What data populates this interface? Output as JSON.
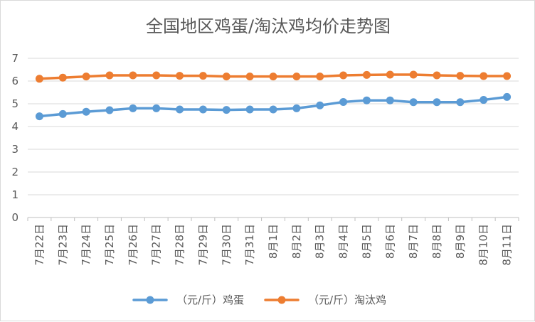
{
  "chart_data": {
    "type": "line",
    "title": "全国地区鸡蛋/淘汰鸡均价走势图",
    "categories": [
      "7月22日",
      "7月23日",
      "7月24日",
      "7月25日",
      "7月26日",
      "7月27日",
      "7月28日",
      "7月29日",
      "7月30日",
      "7月31日",
      "8月1日",
      "8月2日",
      "8月3日",
      "8月4日",
      "8月5日",
      "8月6日",
      "8月7日",
      "8月8日",
      "8月9日",
      "8月10日",
      "8月11日"
    ],
    "y_ticks": [
      "0",
      "1",
      "2",
      "3",
      "4",
      "5",
      "6",
      "7"
    ],
    "ylim": [
      0,
      7
    ],
    "grid": true,
    "legend_position": "bottom",
    "series": [
      {
        "name": "（元/斤）鸡蛋",
        "color": "#5b9bd5",
        "values": [
          4.45,
          4.55,
          4.65,
          4.72,
          4.8,
          4.8,
          4.75,
          4.75,
          4.73,
          4.75,
          4.75,
          4.8,
          4.93,
          5.08,
          5.15,
          5.15,
          5.07,
          5.07,
          5.07,
          5.17,
          5.3
        ]
      },
      {
        "name": "（元/斤）淘汰鸡",
        "color": "#ed7d31",
        "values": [
          6.1,
          6.15,
          6.2,
          6.25,
          6.25,
          6.25,
          6.23,
          6.23,
          6.2,
          6.2,
          6.2,
          6.2,
          6.2,
          6.25,
          6.27,
          6.28,
          6.28,
          6.25,
          6.23,
          6.22,
          6.22
        ]
      }
    ]
  }
}
